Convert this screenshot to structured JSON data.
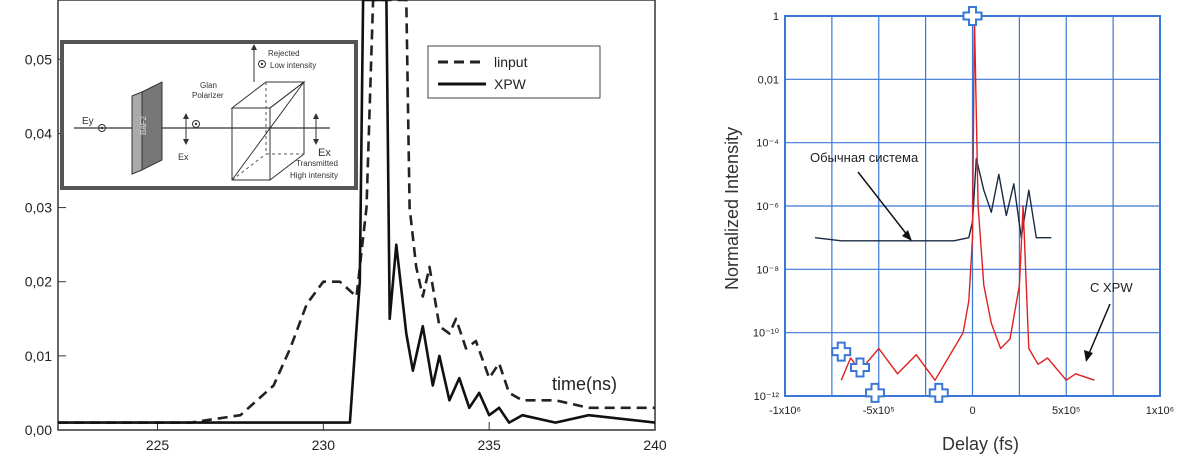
{
  "chart_data": [
    {
      "type": "line",
      "title": "",
      "xlabel": "time(ns)",
      "ylabel": "",
      "xlim": [
        222,
        240
      ],
      "ylim": [
        0,
        0.058
      ],
      "x_ticks": [
        225,
        230,
        235,
        240
      ],
      "y_ticks": [
        0.0,
        0.01,
        0.02,
        0.03,
        0.04,
        0.05
      ],
      "x_tick_labels": [
        "225",
        "230",
        "235",
        "240"
      ],
      "y_tick_labels": [
        "0,00",
        "0,01",
        "0,02",
        "0,03",
        "0,04",
        "0,05"
      ],
      "legend": {
        "placement": "top-right",
        "entries": [
          "linput",
          "XPW"
        ]
      },
      "series": [
        {
          "name": "linput",
          "style": "dashed",
          "color": "#222222",
          "x": [
            222,
            226,
            227.5,
            228.5,
            229,
            229.5,
            230,
            230.5,
            231,
            231.3,
            231.5,
            231.6,
            232.5,
            232.6,
            232.8,
            233,
            233.2,
            233.5,
            233.8,
            234,
            234.3,
            234.6,
            235,
            235.3,
            235.6,
            236,
            237,
            238,
            240
          ],
          "y": [
            0.001,
            0.001,
            0.002,
            0.006,
            0.011,
            0.017,
            0.02,
            0.02,
            0.018,
            0.03,
            0.058,
            0.058,
            0.058,
            0.03,
            0.022,
            0.018,
            0.022,
            0.014,
            0.013,
            0.015,
            0.011,
            0.012,
            0.007,
            0.009,
            0.005,
            0.004,
            0.004,
            0.003,
            0.003
          ]
        },
        {
          "name": "XPW",
          "style": "solid",
          "color": "#111111",
          "x": [
            222,
            228,
            230,
            230.8,
            231.1,
            231.2,
            231.4,
            231.9,
            232,
            232.2,
            232.5,
            232.7,
            233,
            233.3,
            233.5,
            233.8,
            234.1,
            234.4,
            234.7,
            235,
            235.3,
            235.6,
            236,
            237,
            238,
            240
          ],
          "y": [
            0.001,
            0.001,
            0.001,
            0.001,
            0.02,
            0.058,
            0.058,
            0.058,
            0.015,
            0.025,
            0.013,
            0.008,
            0.014,
            0.006,
            0.01,
            0.004,
            0.007,
            0.003,
            0.005,
            0.002,
            0.003,
            0.001,
            0.002,
            0.001,
            0.002,
            0.001
          ]
        }
      ],
      "inset": {
        "labels": {
          "ey": "Ey",
          "ex_small": "Ex",
          "polarizer": "Glan Polarizer",
          "rejected_1": "Rejected",
          "rejected_2": "Low intensity",
          "ex_big": "Ex",
          "transmitted_1": "Transmitted",
          "transmitted_2": "High intensity",
          "crystal": "BaF2"
        }
      }
    },
    {
      "type": "line",
      "title": "",
      "xlabel": "Delay (fs)",
      "ylabel": "Normalized Intensity",
      "scale_y": "log",
      "xlim": [
        -1000000,
        1000000
      ],
      "ylim": [
        1e-12,
        1
      ],
      "x_tick_labels": [
        "-1x10⁶",
        "-5x10⁵",
        "0",
        "5x10⁵",
        "1x10⁶"
      ],
      "y_tick_labels": [
        "1",
        "0,01",
        "10⁻⁴",
        "10⁻⁶",
        "10⁻⁸",
        "10⁻¹⁰",
        "10⁻¹²"
      ],
      "grid": true,
      "colors": {
        "grid": "#3a78d8",
        "tick_text": "#222222"
      },
      "annotations": [
        "Обычная система",
        "C XPW"
      ],
      "series": [
        {
          "color": "#1b2a44",
          "x": [
            -840000,
            -700000,
            -500000,
            -300000,
            -100000,
            -20000,
            0,
            20000,
            60000,
            100000,
            140000,
            180000,
            220000,
            260000,
            300000,
            340000,
            380000,
            420000
          ],
          "y": [
            -7,
            -7.1,
            -7.1,
            -7.1,
            -7.1,
            -7,
            -6.5,
            -4.5,
            -5.5,
            -6.2,
            -5,
            -6.3,
            -5.3,
            -7,
            -5.5,
            -7,
            -7,
            -7
          ]
        },
        {
          "color": "#e02020",
          "x": [
            -700000,
            -650000,
            -600000,
            -500000,
            -400000,
            -300000,
            -200000,
            -100000,
            -50000,
            -20000,
            0,
            10000,
            30000,
            60000,
            100000,
            150000,
            200000,
            250000,
            270000,
            300000,
            350000,
            400000,
            500000,
            550000,
            650000
          ],
          "y": [
            -11.5,
            -10.8,
            -11.2,
            -10.5,
            -11.3,
            -10.7,
            -11.5,
            -10.5,
            -10,
            -9,
            -7,
            0,
            -6,
            -8.5,
            -9.7,
            -10.5,
            -10.2,
            -8.5,
            -6,
            -10.5,
            -11,
            -10.8,
            -11.5,
            -11.3,
            -11.5
          ]
        }
      ],
      "markers": [
        {
          "x": 0,
          "y": 0
        },
        {
          "x": -700000,
          "y": -10.6
        },
        {
          "x": -600000,
          "y": -11.1
        },
        {
          "x": -520000,
          "y": -11.9
        },
        {
          "x": -180000,
          "y": -11.9
        }
      ]
    }
  ]
}
